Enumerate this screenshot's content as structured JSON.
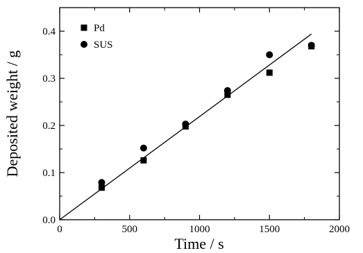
{
  "chart_data": {
    "type": "scatter",
    "xlabel": "Time / s",
    "ylabel": "Deposited weight / g",
    "xlim": [
      0,
      2000
    ],
    "ylim": [
      0,
      0.45
    ],
    "xticks": [
      0,
      500,
      1000,
      1500,
      2000
    ],
    "yticks": [
      0.0,
      0.1,
      0.2,
      0.3,
      0.4
    ],
    "xtick_labels": [
      "0",
      "500",
      "1000",
      "1500",
      "2000"
    ],
    "ytick_labels": [
      "0.0",
      "0.1",
      "0.2",
      "0.3",
      "0.4"
    ],
    "legend_position": "top-left",
    "grid": false,
    "series": [
      {
        "name": "Pd",
        "marker": "square",
        "color": "#000000",
        "points": [
          {
            "x": 300,
            "y": 0.068
          },
          {
            "x": 600,
            "y": 0.126
          },
          {
            "x": 900,
            "y": 0.198
          },
          {
            "x": 1200,
            "y": 0.265
          },
          {
            "x": 1500,
            "y": 0.312
          },
          {
            "x": 1800,
            "y": 0.368
          }
        ]
      },
      {
        "name": "SUS",
        "marker": "circle",
        "color": "#000000",
        "points": [
          {
            "x": 300,
            "y": 0.079
          },
          {
            "x": 600,
            "y": 0.152
          },
          {
            "x": 900,
            "y": 0.203
          },
          {
            "x": 1200,
            "y": 0.274
          },
          {
            "x": 1500,
            "y": 0.35
          },
          {
            "x": 1800,
            "y": 0.37
          }
        ]
      }
    ],
    "fit_line": {
      "x": [
        0,
        1800
      ],
      "y": [
        0.0,
        0.394
      ]
    }
  }
}
